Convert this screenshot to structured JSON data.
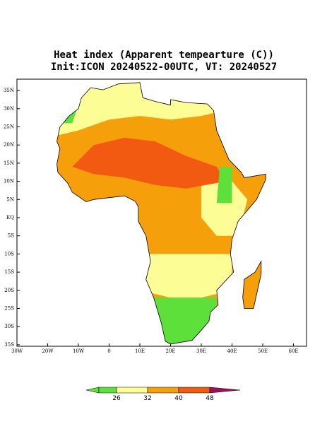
{
  "title": [
    "Heat index (Apparent tempearture (C))",
    "Init:ICON 20240522-00UTC, VT: 20240527"
  ],
  "map": {
    "lat_labels": [
      "35N",
      "30N",
      "25N",
      "20N",
      "15N",
      "10N",
      "5N",
      "EQ",
      "5S",
      "10S",
      "15S",
      "20S",
      "25S",
      "30S",
      "35S"
    ],
    "lon_labels": [
      "30W",
      "20W",
      "10W",
      "0",
      "10E",
      "20E",
      "30E",
      "40E",
      "50E",
      "60E"
    ]
  },
  "colorbar": {
    "ticks": [
      26,
      32,
      40,
      48
    ],
    "colors": [
      "#5ee03a",
      "#fdfd96",
      "#f5a00a",
      "#f25a12",
      "#a0105a"
    ]
  }
}
